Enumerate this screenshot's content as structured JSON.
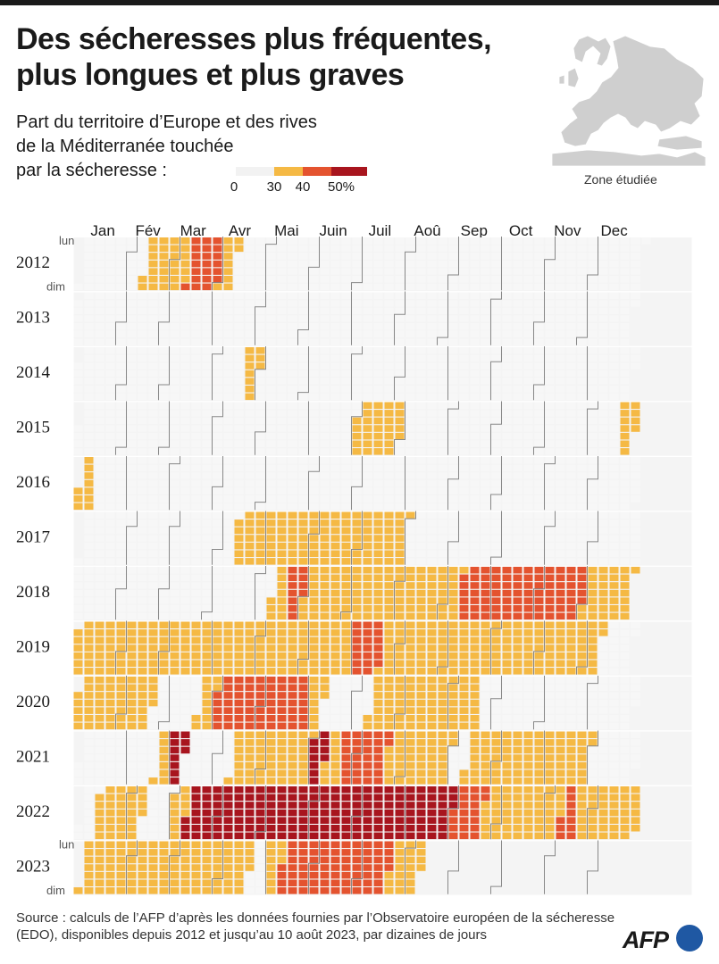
{
  "header": {
    "title_line1": "Des sécheresses plus fréquentes,",
    "title_line2": "plus longues et plus graves",
    "subtitle_line1": "Part du territoire d’Europe et des rives",
    "subtitle_line2": "de la Méditerranée touchée",
    "subtitle_line3": "par la sécheresse :"
  },
  "scale": {
    "ticks": [
      "0",
      "30",
      "40",
      "50%"
    ],
    "colors": [
      "#f2f2f2",
      "#f5b944",
      "#e4532f",
      "#a8151e"
    ]
  },
  "map": {
    "label": "Zone étudiée"
  },
  "chart_data": {
    "type": "heatmap",
    "description_unit": "dekad",
    "months": [
      "Jan",
      "Fév",
      "Mar",
      "Avr",
      "Mai",
      "Juin",
      "Juil",
      "Aoû",
      "Sep",
      "Oct",
      "Nov",
      "Dec"
    ],
    "day_labels": {
      "top": "lun",
      "bottom": "dim"
    },
    "years": [
      "2012",
      "2013",
      "2014",
      "2015",
      "2016",
      "2017",
      "2018",
      "2019",
      "2020",
      "2021",
      "2022",
      "2023"
    ],
    "scale_colors": [
      "#f2f2f2",
      "#f5b944",
      "#e4532f",
      "#a8151e"
    ],
    "class_legend": {
      "0": "< 30%",
      "1": "30–40%",
      "2": "40–50%",
      "3": "≥ 50%"
    },
    "dekad_classes": {
      "2012": [
        0,
        0,
        0,
        0,
        1,
        1,
        1,
        2,
        2,
        1,
        0,
        0,
        0,
        0,
        0,
        0,
        0,
        0,
        0,
        0,
        0,
        0,
        0,
        0,
        0,
        0,
        0,
        0,
        0,
        0,
        0,
        0,
        0,
        0,
        0,
        0
      ],
      "2013": [
        0,
        0,
        0,
        0,
        0,
        0,
        0,
        0,
        0,
        0,
        0,
        0,
        0,
        0,
        0,
        0,
        0,
        0,
        0,
        0,
        0,
        0,
        0,
        0,
        0,
        0,
        0,
        0,
        0,
        0,
        0,
        0,
        0,
        0,
        0,
        0
      ],
      "2014": [
        0,
        0,
        0,
        0,
        0,
        0,
        0,
        0,
        0,
        0,
        0,
        1,
        0,
        0,
        0,
        0,
        0,
        0,
        0,
        0,
        0,
        0,
        0,
        0,
        0,
        0,
        0,
        0,
        0,
        0,
        0,
        0,
        0,
        0,
        0,
        0
      ],
      "2015": [
        0,
        0,
        0,
        0,
        0,
        0,
        0,
        0,
        0,
        0,
        0,
        0,
        0,
        0,
        0,
        0,
        0,
        0,
        1,
        1,
        1,
        0,
        0,
        0,
        0,
        0,
        0,
        0,
        0,
        0,
        0,
        0,
        0,
        0,
        0,
        1
      ],
      "2016": [
        1,
        0,
        0,
        0,
        0,
        0,
        0,
        0,
        0,
        0,
        0,
        0,
        0,
        0,
        0,
        0,
        0,
        0,
        0,
        0,
        0,
        0,
        0,
        0,
        0,
        0,
        0,
        0,
        0,
        0,
        0,
        0,
        0,
        0,
        0,
        0
      ],
      "2017": [
        0,
        0,
        0,
        0,
        0,
        0,
        0,
        0,
        0,
        0,
        1,
        1,
        1,
        1,
        1,
        1,
        1,
        1,
        1,
        1,
        1,
        0,
        0,
        0,
        0,
        0,
        0,
        0,
        0,
        0,
        0,
        0,
        0,
        0,
        0,
        0
      ],
      "2018": [
        0,
        0,
        0,
        0,
        0,
        0,
        0,
        0,
        0,
        0,
        0,
        0,
        0,
        1,
        2,
        1,
        1,
        1,
        1,
        1,
        1,
        1,
        1,
        1,
        1,
        2,
        2,
        2,
        2,
        2,
        2,
        2,
        2,
        1,
        1,
        1
      ],
      "2019": [
        1,
        1,
        1,
        1,
        1,
        1,
        1,
        1,
        1,
        1,
        1,
        1,
        1,
        1,
        1,
        1,
        1,
        1,
        2,
        2,
        1,
        1,
        1,
        1,
        1,
        1,
        1,
        1,
        1,
        1,
        1,
        1,
        1,
        1,
        0,
        0
      ],
      "2020": [
        1,
        1,
        1,
        1,
        1,
        0,
        0,
        0,
        1,
        2,
        2,
        2,
        2,
        2,
        2,
        1,
        0,
        0,
        0,
        1,
        1,
        1,
        1,
        1,
        1,
        1,
        0,
        0,
        0,
        0,
        0,
        0,
        0,
        0,
        0,
        0
      ],
      "2021": [
        0,
        0,
        0,
        0,
        0,
        1,
        3,
        0,
        0,
        0,
        1,
        1,
        1,
        1,
        1,
        3,
        1,
        2,
        2,
        2,
        1,
        1,
        1,
        1,
        0,
        1,
        1,
        1,
        1,
        1,
        1,
        1,
        1,
        0,
        0,
        0
      ],
      "2022": [
        0,
        1,
        1,
        1,
        0,
        0,
        1,
        3,
        3,
        3,
        3,
        3,
        3,
        3,
        3,
        3,
        3,
        3,
        3,
        3,
        3,
        3,
        3,
        3,
        2,
        2,
        1,
        1,
        1,
        1,
        1,
        2,
        1,
        1,
        1,
        1
      ],
      "2023": [
        1,
        1,
        1,
        1,
        1,
        1,
        1,
        1,
        1,
        1,
        1,
        0,
        1,
        2,
        2,
        2,
        2,
        2,
        2,
        2,
        1,
        1,
        0,
        0,
        0,
        0,
        0,
        0,
        0,
        0,
        0,
        0,
        0,
        0,
        0,
        0
      ]
    },
    "data_through": {
      "year": "2023",
      "dekad_index": 21
    }
  },
  "footer": {
    "source_line1": "Source : calculs de l’AFP d’après les données fournies par l’Observatoire européen de la sécheresse",
    "source_line2": "(EDO), disponibles depuis 2012 et jusqu’au 10 août 2023, par dizaines de jours",
    "logo_text": "AFP"
  }
}
